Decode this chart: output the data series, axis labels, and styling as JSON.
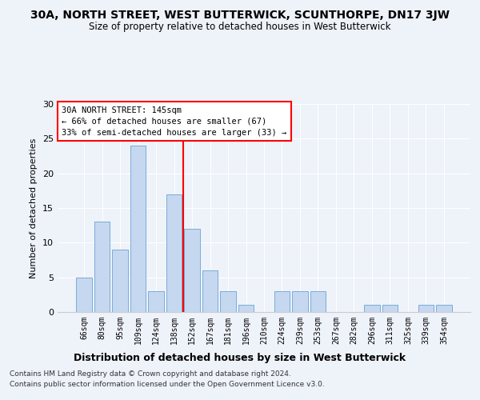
{
  "title": "30A, NORTH STREET, WEST BUTTERWICK, SCUNTHORPE, DN17 3JW",
  "subtitle": "Size of property relative to detached houses in West Butterwick",
  "xlabel": "Distribution of detached houses by size in West Butterwick",
  "ylabel": "Number of detached properties",
  "categories": [
    "66sqm",
    "80sqm",
    "95sqm",
    "109sqm",
    "124sqm",
    "138sqm",
    "152sqm",
    "167sqm",
    "181sqm",
    "196sqm",
    "210sqm",
    "224sqm",
    "239sqm",
    "253sqm",
    "267sqm",
    "282sqm",
    "296sqm",
    "311sqm",
    "325sqm",
    "339sqm",
    "354sqm"
  ],
  "values": [
    5,
    13,
    9,
    24,
    3,
    17,
    12,
    6,
    3,
    1,
    0,
    3,
    3,
    3,
    0,
    0,
    1,
    1,
    0,
    1,
    1
  ],
  "bar_color": "#c5d8f0",
  "bar_edgecolor": "#7aabdb",
  "ylim": [
    0,
    30
  ],
  "yticks": [
    0,
    5,
    10,
    15,
    20,
    25,
    30
  ],
  "vline_x": 5.5,
  "vline_color": "red",
  "annotation_box_text": "30A NORTH STREET: 145sqm\n← 66% of detached houses are smaller (67)\n33% of semi-detached houses are larger (33) →",
  "bg_color": "#eef2f9",
  "footer_line1": "Contains HM Land Registry data © Crown copyright and database right 2024.",
  "footer_line2": "Contains public sector information licensed under the Open Government Licence v3.0."
}
